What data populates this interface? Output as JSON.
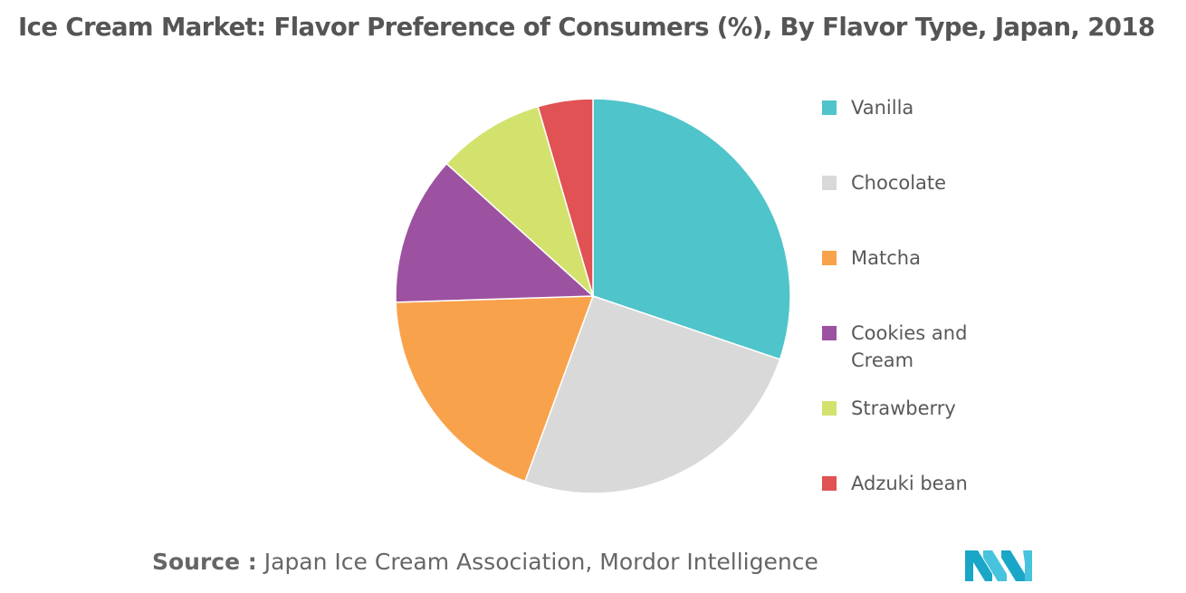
{
  "title": "Ice Cream Market: Flavor Preference of Consumers (%), By Flavor Type, Japan, 2018",
  "source": {
    "prefix": "Source :",
    "text": "Japan Ice Cream Association, Mordor Intelligence"
  },
  "logo": {
    "icon": "mordor-intelligence-logo-icon",
    "colors": [
      "#1aa6c7",
      "#47c3de"
    ]
  },
  "chart_data": {
    "type": "pie",
    "title": "Ice Cream Market: Flavor Preference of Consumers (%), By Flavor Type, Japan, 2018",
    "categories": [
      "Vanilla",
      "Chocolate",
      "Matcha",
      "Cookies and Cream",
      "Strawberry",
      "Adzuki bean"
    ],
    "legend_labels": [
      [
        "Vanilla"
      ],
      [
        "Chocolate"
      ],
      [
        "Matcha"
      ],
      [
        "Cookies and",
        "Cream"
      ],
      [
        "Strawberry"
      ],
      [
        "Adzuki bean"
      ]
    ],
    "values": [
      30.2,
      25.4,
      18.9,
      12.2,
      8.8,
      4.5
    ],
    "colors": [
      "#4fc4ca",
      "#d9d9d9",
      "#f9a24c",
      "#9c52a0",
      "#d3e26d",
      "#e05253"
    ],
    "legend_position": "right"
  }
}
